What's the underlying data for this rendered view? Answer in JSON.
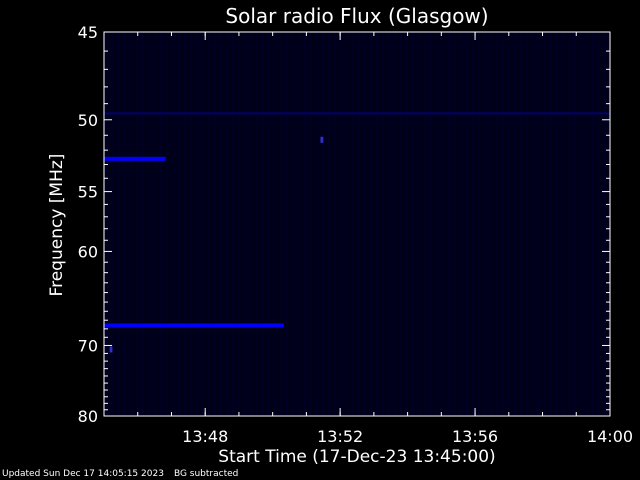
{
  "chart_data": {
    "type": "heatmap",
    "title": "Solar radio Flux (Glasgow)",
    "xlabel": "Start Time (17-Dec-23 13:45:00)",
    "ylabel": "Frequency [MHz]",
    "x_range": [
      "13:45",
      "14:00"
    ],
    "x_ticks": [
      "13:48",
      "13:52",
      "13:56",
      "14:00"
    ],
    "y_range": [
      45,
      80
    ],
    "y_ticks": [
      45,
      50,
      55,
      60,
      70,
      80
    ],
    "y_scale": "reciprocal",
    "features": [
      {
        "kind": "band",
        "frequency": 52.6,
        "start": "13:45",
        "end": "13:46:50"
      },
      {
        "kind": "band",
        "frequency": 67.6,
        "start": "13:45",
        "end": "13:50:20"
      },
      {
        "kind": "band",
        "frequency": 49.6,
        "start": "13:45",
        "end": "14:00"
      },
      {
        "kind": "spot",
        "frequency": 70.5,
        "start": "13:45:10",
        "end": "13:45:15"
      },
      {
        "kind": "spot",
        "frequency": 51.3,
        "start": "13:51:25",
        "end": "13:51:30"
      }
    ],
    "colors": {
      "background": "#000000",
      "plot": "#000018",
      "signal": "#0000ff",
      "text": "#ffffff"
    }
  },
  "footer": {
    "updated": "Updated Sun Dec 17 14:05:15 2023",
    "note": "BG subtracted"
  }
}
